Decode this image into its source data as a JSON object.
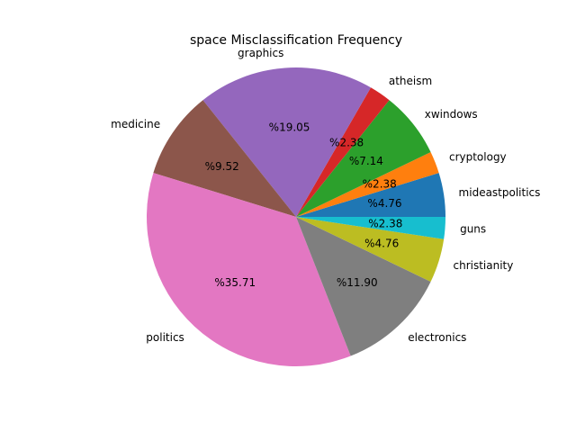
{
  "chart_data": {
    "type": "pie",
    "title": "space Misclassification Frequency",
    "label_format": "%{value}",
    "start_angle_deg": 0,
    "direction": "counterclockwise",
    "slices": [
      {
        "label": "mideastpolitics",
        "value": 4.76,
        "pct_text": "%4.76",
        "color": "#1f77b4"
      },
      {
        "label": "cryptology",
        "value": 2.38,
        "pct_text": "%2.38",
        "color": "#ff7f0e"
      },
      {
        "label": "xwindows",
        "value": 7.14,
        "pct_text": "%7.14",
        "color": "#2ca02c"
      },
      {
        "label": "atheism",
        "value": 2.38,
        "pct_text": "%2.38",
        "color": "#d62728"
      },
      {
        "label": "graphics",
        "value": 19.05,
        "pct_text": "%19.05",
        "color": "#9467bd"
      },
      {
        "label": "medicine",
        "value": 9.52,
        "pct_text": "%9.52",
        "color": "#8c564b"
      },
      {
        "label": "politics",
        "value": 35.71,
        "pct_text": "%35.71",
        "color": "#e377c2"
      },
      {
        "label": "electronics",
        "value": 11.9,
        "pct_text": "%11.90",
        "color": "#7f7f7f"
      },
      {
        "label": "christianity",
        "value": 4.76,
        "pct_text": "%4.76",
        "color": "#bcbd22"
      },
      {
        "label": "guns",
        "value": 2.38,
        "pct_text": "%2.38",
        "color": "#17becf"
      }
    ]
  }
}
